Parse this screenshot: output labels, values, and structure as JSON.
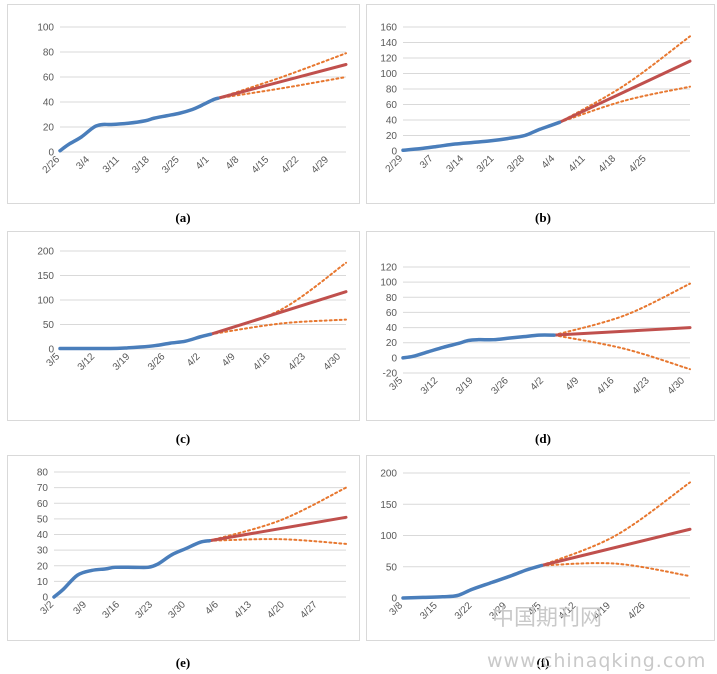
{
  "chart_data": [
    {
      "type": "line",
      "caption": "(a)",
      "ylim": [
        0,
        100
      ],
      "yticks": [
        0,
        20,
        40,
        60,
        80,
        100
      ],
      "x_range": [
        0,
        67
      ],
      "xticks": [
        {
          "x": 0,
          "label": "2/26"
        },
        {
          "x": 7,
          "label": "3/4"
        },
        {
          "x": 14,
          "label": "3/11"
        },
        {
          "x": 21,
          "label": "3/18"
        },
        {
          "x": 28,
          "label": "3/25"
        },
        {
          "x": 35,
          "label": "4/1"
        },
        {
          "x": 42,
          "label": "4/8"
        },
        {
          "x": 49,
          "label": "4/15"
        },
        {
          "x": 56,
          "label": "4/22"
        },
        {
          "x": 63,
          "label": "4/29"
        }
      ],
      "observed": [
        [
          0,
          1
        ],
        [
          2,
          6
        ],
        [
          5,
          12
        ],
        [
          8,
          20
        ],
        [
          10,
          22
        ],
        [
          12,
          22
        ],
        [
          16,
          23
        ],
        [
          20,
          25
        ],
        [
          22,
          27
        ],
        [
          25,
          29
        ],
        [
          28,
          31
        ],
        [
          31,
          34
        ],
        [
          33,
          37
        ],
        [
          36,
          42
        ],
        [
          37,
          43
        ]
      ],
      "forecast": [
        [
          37,
          43
        ],
        [
          67,
          70
        ]
      ],
      "upper": [
        [
          37,
          43
        ],
        [
          52,
          60
        ],
        [
          67,
          79
        ]
      ],
      "lower": [
        [
          37,
          43
        ],
        [
          52,
          51
        ],
        [
          67,
          60
        ]
      ]
    },
    {
      "type": "line",
      "caption": "(b)",
      "ylim": [
        0,
        160
      ],
      "yticks": [
        0,
        20,
        40,
        60,
        80,
        100,
        120,
        140,
        160
      ],
      "x_range": [
        0,
        66
      ],
      "xticks": [
        {
          "x": 0,
          "label": "2/29"
        },
        {
          "x": 7,
          "label": "3/7"
        },
        {
          "x": 14,
          "label": "3/14"
        },
        {
          "x": 21,
          "label": "3/21"
        },
        {
          "x": 28,
          "label": "3/28"
        },
        {
          "x": 35,
          "label": "4/4"
        },
        {
          "x": 42,
          "label": "4/11"
        },
        {
          "x": 49,
          "label": "4/18"
        },
        {
          "x": 56,
          "label": "4/25"
        }
      ],
      "observed": [
        [
          0,
          1
        ],
        [
          4,
          3
        ],
        [
          8,
          6
        ],
        [
          12,
          9
        ],
        [
          16,
          11
        ],
        [
          20,
          13
        ],
        [
          24,
          16
        ],
        [
          28,
          20
        ],
        [
          31,
          27
        ],
        [
          34,
          33
        ],
        [
          36,
          37
        ]
      ],
      "forecast": [
        [
          36,
          37
        ],
        [
          66,
          116
        ]
      ],
      "upper": [
        [
          36,
          37
        ],
        [
          51,
          85
        ],
        [
          66,
          148
        ]
      ],
      "lower": [
        [
          36,
          37
        ],
        [
          51,
          65
        ],
        [
          66,
          83
        ]
      ]
    },
    {
      "type": "line",
      "caption": "(c)",
      "ylim": [
        0,
        200
      ],
      "yticks": [
        0,
        50,
        100,
        150,
        200
      ],
      "x_range": [
        0,
        57
      ],
      "xticks": [
        {
          "x": 0,
          "label": "3/5"
        },
        {
          "x": 7,
          "label": "3/12"
        },
        {
          "x": 14,
          "label": "3/19"
        },
        {
          "x": 21,
          "label": "3/26"
        },
        {
          "x": 28,
          "label": "4/2"
        },
        {
          "x": 35,
          "label": "4/9"
        },
        {
          "x": 42,
          "label": "4/16"
        },
        {
          "x": 49,
          "label": "4/23"
        },
        {
          "x": 56,
          "label": "4/30"
        }
      ],
      "observed": [
        [
          0,
          1
        ],
        [
          5,
          1
        ],
        [
          10,
          1
        ],
        [
          13,
          2
        ],
        [
          16,
          4
        ],
        [
          19,
          7
        ],
        [
          22,
          12
        ],
        [
          25,
          16
        ],
        [
          28,
          25
        ],
        [
          30,
          30
        ]
      ],
      "forecast": [
        [
          30,
          30
        ],
        [
          57,
          117
        ]
      ],
      "upper": [
        [
          30,
          30
        ],
        [
          44,
          80
        ],
        [
          57,
          176
        ]
      ],
      "lower": [
        [
          30,
          30
        ],
        [
          44,
          52
        ],
        [
          57,
          60
        ]
      ]
    },
    {
      "type": "line",
      "caption": "(d)",
      "ylim": [
        -20,
        120
      ],
      "yticks": [
        -20,
        0,
        20,
        40,
        60,
        80,
        100,
        120
      ],
      "x_range": [
        0,
        57
      ],
      "xticks": [
        {
          "x": 0,
          "label": "3/5"
        },
        {
          "x": 7,
          "label": "3/12"
        },
        {
          "x": 14,
          "label": "3/19"
        },
        {
          "x": 21,
          "label": "3/26"
        },
        {
          "x": 28,
          "label": "4/2"
        },
        {
          "x": 35,
          "label": "4/9"
        },
        {
          "x": 42,
          "label": "4/16"
        },
        {
          "x": 49,
          "label": "4/23"
        },
        {
          "x": 56,
          "label": "4/30"
        }
      ],
      "observed": [
        [
          0,
          0
        ],
        [
          2,
          2
        ],
        [
          5,
          8
        ],
        [
          8,
          14
        ],
        [
          11,
          19
        ],
        [
          13,
          23
        ],
        [
          15,
          24
        ],
        [
          18,
          24
        ],
        [
          21,
          26
        ],
        [
          24,
          28
        ],
        [
          27,
          30
        ],
        [
          30,
          30
        ]
      ],
      "forecast": [
        [
          30,
          30
        ],
        [
          57,
          40
        ]
      ],
      "upper": [
        [
          30,
          30
        ],
        [
          44,
          56
        ],
        [
          57,
          98
        ]
      ],
      "lower": [
        [
          30,
          30
        ],
        [
          44,
          12
        ],
        [
          57,
          -15
        ]
      ]
    },
    {
      "type": "line",
      "caption": "(e)",
      "ylim": [
        0,
        80
      ],
      "yticks": [
        0,
        10,
        20,
        30,
        40,
        50,
        60,
        70,
        80
      ],
      "x_range": [
        0,
        62
      ],
      "xticks": [
        {
          "x": 0,
          "label": "3/2"
        },
        {
          "x": 7,
          "label": "3/9"
        },
        {
          "x": 14,
          "label": "3/16"
        },
        {
          "x": 21,
          "label": "3/23"
        },
        {
          "x": 28,
          "label": "3/30"
        },
        {
          "x": 35,
          "label": "4/6"
        },
        {
          "x": 42,
          "label": "4/13"
        },
        {
          "x": 49,
          "label": "4/20"
        },
        {
          "x": 56,
          "label": "4/27"
        }
      ],
      "observed": [
        [
          0,
          0
        ],
        [
          2,
          5
        ],
        [
          5,
          14
        ],
        [
          8,
          17
        ],
        [
          11,
          18
        ],
        [
          13,
          19
        ],
        [
          17,
          19
        ],
        [
          20,
          19
        ],
        [
          22,
          21
        ],
        [
          25,
          27
        ],
        [
          28,
          31
        ],
        [
          31,
          35
        ],
        [
          33,
          36
        ]
      ],
      "forecast": [
        [
          33,
          36
        ],
        [
          62,
          51
        ]
      ],
      "upper": [
        [
          33,
          36
        ],
        [
          48,
          49
        ],
        [
          62,
          70
        ]
      ],
      "lower": [
        [
          33,
          36
        ],
        [
          48,
          37
        ],
        [
          62,
          34
        ]
      ]
    },
    {
      "type": "line",
      "caption": "(f)",
      "ylim": [
        0,
        200
      ],
      "yticks": [
        0,
        50,
        100,
        150,
        200
      ],
      "x_range": [
        0,
        58
      ],
      "xticks": [
        {
          "x": 0,
          "label": "3/8"
        },
        {
          "x": 7,
          "label": "3/15"
        },
        {
          "x": 14,
          "label": "3/22"
        },
        {
          "x": 21,
          "label": "3/29"
        },
        {
          "x": 28,
          "label": "4/5"
        },
        {
          "x": 35,
          "label": "4/12"
        },
        {
          "x": 42,
          "label": "4/19"
        },
        {
          "x": 49,
          "label": "4/26"
        }
      ],
      "observed": [
        [
          0,
          0
        ],
        [
          4,
          1
        ],
        [
          8,
          2
        ],
        [
          11,
          4
        ],
        [
          14,
          14
        ],
        [
          18,
          25
        ],
        [
          22,
          36
        ],
        [
          25,
          45
        ],
        [
          28,
          52
        ]
      ],
      "forecast": [
        [
          28,
          52
        ],
        [
          58,
          110
        ]
      ],
      "upper": [
        [
          28,
          52
        ],
        [
          43,
          100
        ],
        [
          58,
          185
        ]
      ],
      "lower": [
        [
          28,
          52
        ],
        [
          43,
          55
        ],
        [
          58,
          35
        ]
      ]
    }
  ],
  "colors": {
    "observed": "#4a7ebb",
    "forecast": "#c0504d",
    "interval": "#e7772f",
    "axis_text": "#595959",
    "gridline": "#d9d9d9"
  },
  "watermark": {
    "text_cn": "中国期刊网",
    "text_url": "www.chinaqking.com"
  }
}
